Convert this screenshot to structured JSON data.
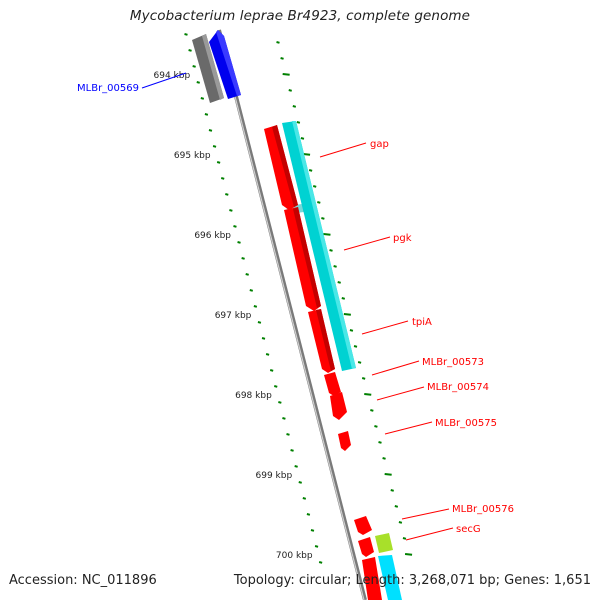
{
  "header": {
    "title": "Mycobacterium leprae Br4923, complete genome"
  },
  "footer": {
    "accession": "Accession: NC_011896",
    "summary": "Topology: circular; Length: 3,268,071 bp; Genes: 1,651"
  },
  "ruler": {
    "ticks": [
      {
        "label": "694 kbp",
        "pos_kbp": 694
      },
      {
        "label": "695 kbp",
        "pos_kbp": 695
      },
      {
        "label": "696 kbp",
        "pos_kbp": 696
      },
      {
        "label": "697 kbp",
        "pos_kbp": 697
      },
      {
        "label": "698 kbp",
        "pos_kbp": 698
      },
      {
        "label": "699 kbp",
        "pos_kbp": 699
      },
      {
        "label": "700 kbp",
        "pos_kbp": 700
      }
    ]
  },
  "genes": [
    {
      "name": "MLBr_00569",
      "color": "#0000ff"
    },
    {
      "name": "gap",
      "color": "#ff0000"
    },
    {
      "name": "pgk",
      "color": "#ff0000"
    },
    {
      "name": "tpiA",
      "color": "#ff0000"
    },
    {
      "name": "MLBr_00573",
      "color": "#ff0000"
    },
    {
      "name": "MLBr_00574",
      "color": "#ff0000"
    },
    {
      "name": "MLBr_00575",
      "color": "#ff0000"
    },
    {
      "name": "MLBr_00576",
      "color": "#ff0000"
    },
    {
      "name": "secG",
      "color": "#ff0000"
    }
  ],
  "colors": {
    "cds": "#ff0000",
    "cds_shadow": "#b30000",
    "other_strand": "#0000ff",
    "gray_feature": "#707070",
    "blast_hit": "#00d2d2",
    "green_hit": "#9acd32",
    "backbone": "#808080",
    "tick_dots": "#008000"
  }
}
